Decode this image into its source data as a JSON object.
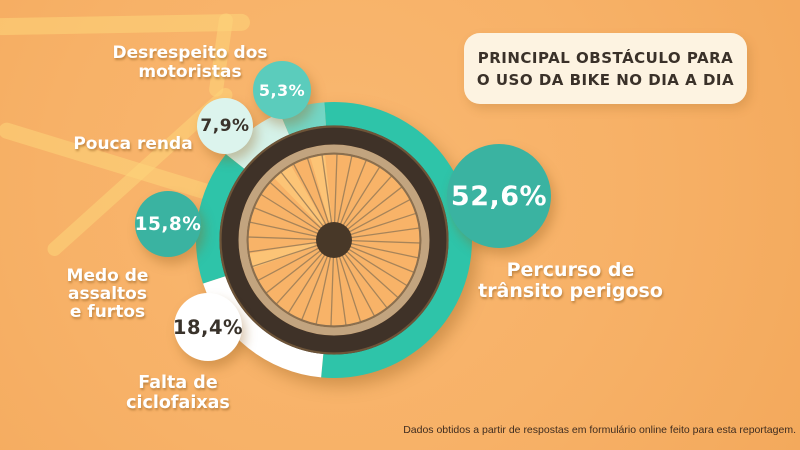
{
  "page": {
    "background_color": "#f7b167",
    "frame_band_color": "#fdd57a"
  },
  "title_card": {
    "line1": "PRINCIPAL OBSTÁCULO PARA",
    "line2": "O USO DA BIKE NO DIA A DIA",
    "bg_color": "#fdf3e1",
    "text_color": "#3a3129"
  },
  "chart_data": {
    "type": "pie",
    "variant": "donut ring drawn around a bicycle wheel illustration",
    "title": "Principal obstáculo para o uso da bike no dia a dia",
    "unit": "%",
    "start_angle_deg": -4,
    "clockwise": true,
    "legend_position": "callouts around wheel",
    "segments": [
      {
        "label": "Percurso de trânsito perigoso",
        "value": 52.6,
        "display": "52,6%",
        "segment_color": "#2ec4a9",
        "bubble_color": "#3ab3a1",
        "value_text_color": "#ffffff"
      },
      {
        "label": "Falta de ciclofaixas",
        "value": 18.4,
        "display": "18,4%",
        "segment_color": "#ffffff",
        "bubble_color": "#ffffff",
        "value_text_color": "#3a332b"
      },
      {
        "label": "Medo de assaltos e furtos",
        "value": 15.8,
        "display": "15,8%",
        "segment_color": "#2ec4a9",
        "bubble_color": "#3ab3a1",
        "value_text_color": "#ffffff"
      },
      {
        "label": "Pouca renda",
        "value": 7.9,
        "display": "7,9%",
        "segment_color": "#d5f2e9",
        "bubble_color": "#dcf4ed",
        "value_text_color": "#3a332b"
      },
      {
        "label": "Desrespeito dos motoristas",
        "value": 5.3,
        "display": "5,3%",
        "segment_color": "#74d6c5",
        "bubble_color": "#5bccbc",
        "value_text_color": "#ffffff"
      }
    ],
    "source": "Dados obtidos a partir de respostas em formulário online feito para esta reportagem."
  },
  "callouts": {
    "desrespeito": [
      "Desrespeito dos",
      "motoristas"
    ],
    "pouca": [
      "Pouca renda"
    ],
    "medo": [
      "Medo de",
      "assaltos",
      "e furtos"
    ],
    "falta": [
      "Falta de ciclofaixas"
    ],
    "percurso": [
      "Percurso de",
      "trânsito perigoso"
    ]
  },
  "wheel": {
    "tire_color": "#3f3228",
    "tire_edge_color": "#6d5438",
    "rim_color": "#c2a47f",
    "rim_line_color": "#8a6f4f",
    "spoke_color": "#9a7c57",
    "hub_color": "#483828",
    "interior_color": "#f8b368",
    "wedge_color": "#ffd584"
  },
  "source_note": "Dados obtidos a partir de respostas em formulário online feito para esta reportagem."
}
